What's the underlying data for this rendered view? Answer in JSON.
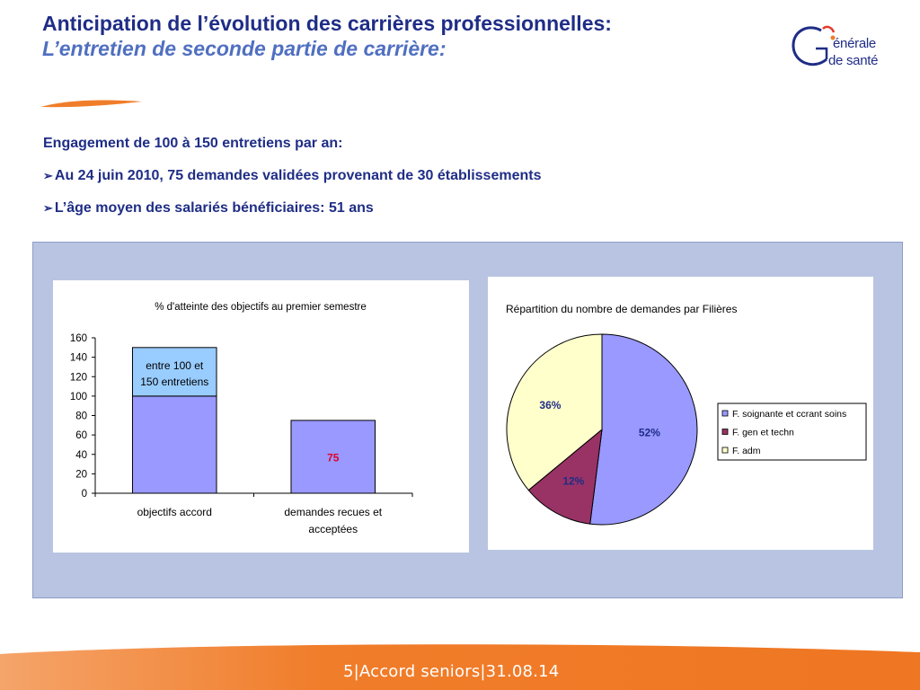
{
  "header": {
    "title": "Anticipation de l’évolution des carrières professionnelles:",
    "subtitle": "L’entretien de seconde partie de carrière:"
  },
  "logo": {
    "line1": "énérale",
    "line2": "de santé",
    "icon": "generale-de-sante-logo-icon"
  },
  "bullets": {
    "heading": "Engagement de 100 à 150 entretiens par an:",
    "items": [
      "Au 24 juin 2010,  75 demandes validées provenant  de 30 établissements",
      "L’âge moyen des salariés bénéficiaires:   51 ans"
    ],
    "marker": "➢"
  },
  "chart_data": [
    {
      "type": "bar",
      "title": "% d'atteinte des objectifs au premier semestre",
      "categories": [
        "objectifs accord",
        "demandes recues et acceptées"
      ],
      "series": [
        {
          "values": [
            100,
            75
          ],
          "color": "#9999ff"
        },
        {
          "values": [
            50,
            0
          ],
          "color": "#99ccff"
        }
      ],
      "annotations": [
        {
          "category": "objectifs accord",
          "text": "entre 100 et 150 entretiens"
        },
        {
          "category": "demandes recues et acceptées",
          "text": "75",
          "color": "#e0002a"
        }
      ],
      "ylim": [
        0,
        160
      ],
      "yticks": [
        0,
        20,
        40,
        60,
        80,
        100,
        120,
        140,
        160
      ],
      "xlabel": "",
      "ylabel": ""
    },
    {
      "type": "pie",
      "title": "Répartition du nombre de demandes par Filières",
      "slices": [
        {
          "label": "F. soignante et ccrant soins",
          "value": 52,
          "text": "52%",
          "color": "#9999ff"
        },
        {
          "label": "F. gen et techn",
          "value": 12,
          "text": "12%",
          "color": "#993366"
        },
        {
          "label": "F. adm",
          "value": 36,
          "text": "36%",
          "color": "#ffffcc"
        }
      ],
      "legend": "right"
    }
  ],
  "footer": {
    "text": "5|Accord seniors|31.08.14"
  },
  "colors": {
    "navy": "#1f2d86",
    "subtitle_blue": "#4f6fc0",
    "orange": "#f07d2a",
    "panel": "#b8c4e1"
  }
}
